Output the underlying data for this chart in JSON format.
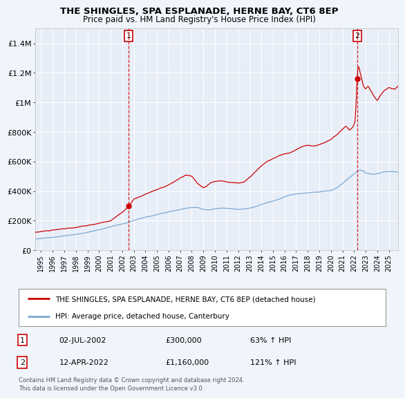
{
  "title": "THE SHINGLES, SPA ESPLANADE, HERNE BAY, CT6 8EP",
  "subtitle": "Price paid vs. HM Land Registry's House Price Index (HPI)",
  "background_color": "#f0f4fb",
  "plot_bg_color": "#e8eef8",
  "red_line_color": "#cc0000",
  "blue_line_color": "#7aa8d4",
  "grid_color": "#ffffff",
  "sale1_date_x": 2002.55,
  "sale1_price": 300000,
  "sale1_label": "1",
  "sale2_date_x": 2022.27,
  "sale2_price": 1160000,
  "sale2_label": "2",
  "legend_red": "THE SHINGLES, SPA ESPLANADE, HERNE BAY, CT6 8EP (detached house)",
  "legend_blue": "HPI: Average price, detached house, Canterbury",
  "table_row1": [
    "1",
    "02-JUL-2002",
    "£300,000",
    "63% ↑ HPI"
  ],
  "table_row2": [
    "2",
    "12-APR-2022",
    "£1,160,000",
    "121% ↑ HPI"
  ],
  "footer": "Contains HM Land Registry data © Crown copyright and database right 2024.\nThis data is licensed under the Open Government Licence v3.0.",
  "ylim": [
    0,
    1500000
  ],
  "xlim_start": 1994.5,
  "xlim_end": 2025.8,
  "yticks": [
    0,
    200000,
    400000,
    600000,
    800000,
    1000000,
    1200000,
    1400000
  ],
  "ytick_labels": [
    "£0",
    "£200K",
    "£400K",
    "£600K",
    "£800K",
    "£1M",
    "£1.2M",
    "£1.4M"
  ]
}
